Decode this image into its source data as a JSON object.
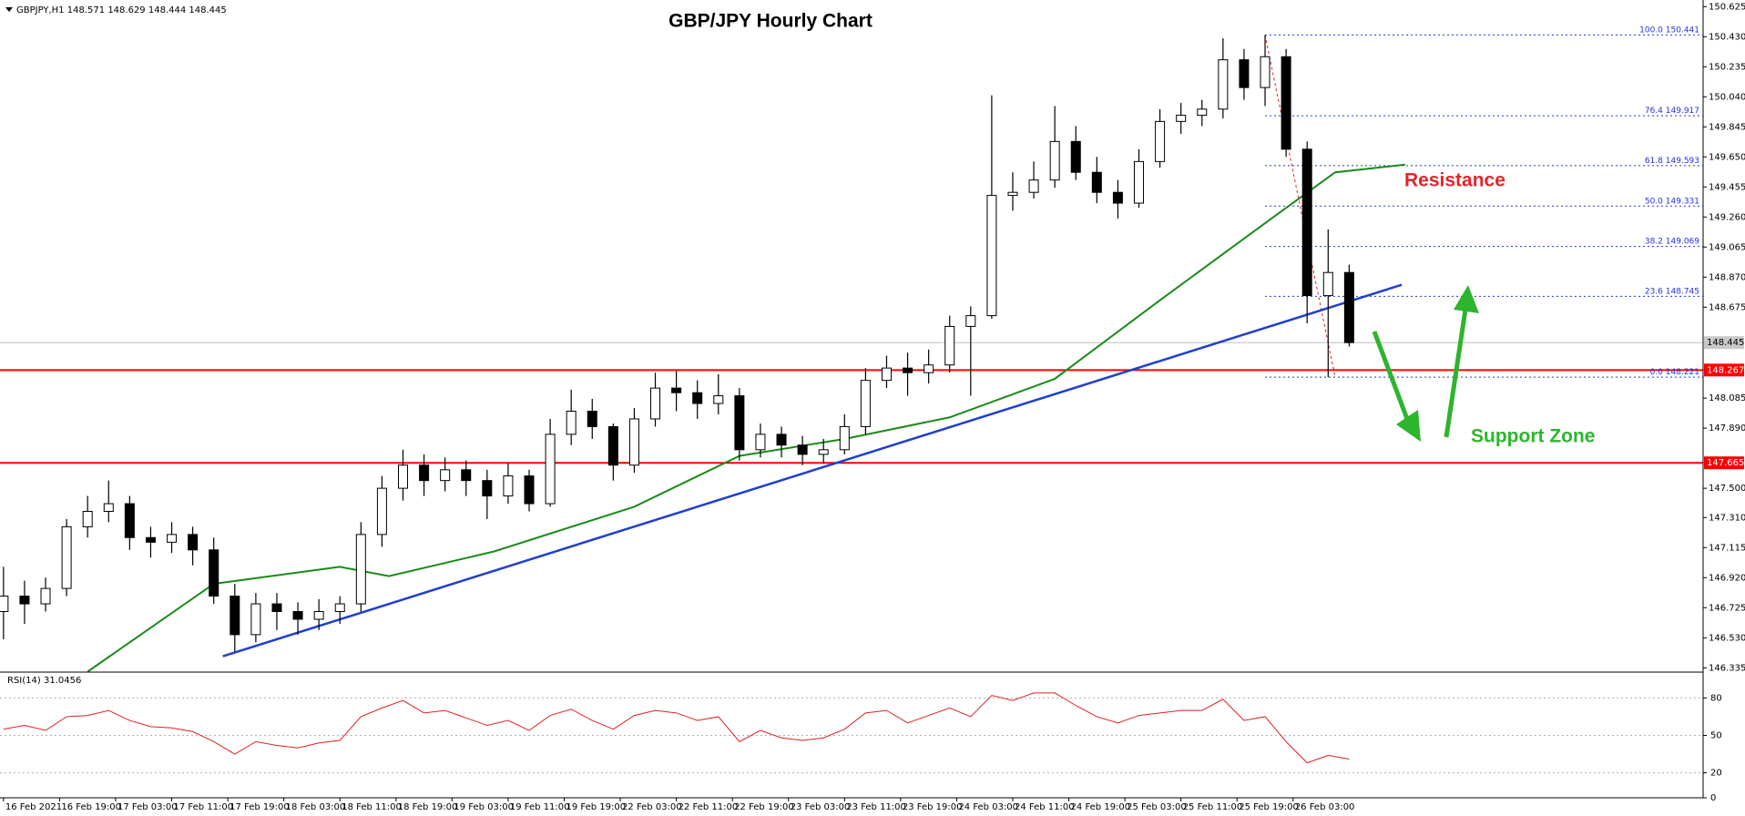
{
  "chart_data": {
    "type": "candlestick",
    "title": "GBP/JPY Hourly Chart",
    "symbol": "GBPJPY,H1",
    "quote": [
      148.571,
      148.629,
      148.444,
      148.445
    ],
    "x": [
      0,
      3,
      6,
      9,
      12,
      15,
      18,
      21,
      24,
      27,
      30,
      33,
      36,
      39,
      42,
      45,
      48,
      51,
      54,
      57,
      60,
      63,
      66,
      69,
      72,
      75,
      78,
      81,
      84,
      87,
      90,
      93,
      96,
      99,
      102,
      105,
      108,
      111,
      114,
      117,
      120,
      123,
      126,
      129,
      132,
      135,
      138,
      141,
      144,
      147,
      150,
      153,
      156,
      159,
      162,
      165,
      168,
      171,
      174,
      177,
      180,
      183,
      186,
      189,
      192
    ],
    "open": [
      146.7,
      146.8,
      146.75,
      146.85,
      147.25,
      147.35,
      147.4,
      147.18,
      147.15,
      147.2,
      147.1,
      146.8,
      146.55,
      146.75,
      146.7,
      146.65,
      146.7,
      146.75,
      147.2,
      147.5,
      147.65,
      147.55,
      147.62,
      147.55,
      147.45,
      147.58,
      147.4,
      147.85,
      148.0,
      147.9,
      147.65,
      147.95,
      148.15,
      148.12,
      148.05,
      148.1,
      147.75,
      147.85,
      147.78,
      147.72,
      147.75,
      147.9,
      148.2,
      148.28,
      148.25,
      148.3,
      148.55,
      148.62,
      149.4,
      149.42,
      149.5,
      149.75,
      149.55,
      149.42,
      149.35,
      149.62,
      149.88,
      149.92,
      149.96,
      150.28,
      150.1,
      150.3,
      149.7,
      148.75,
      148.9
    ],
    "high": [
      146.99,
      146.9,
      146.92,
      147.3,
      147.45,
      147.55,
      147.45,
      147.25,
      147.28,
      147.25,
      147.18,
      146.88,
      146.82,
      146.82,
      146.76,
      146.78,
      146.8,
      147.28,
      147.58,
      147.75,
      147.72,
      147.7,
      147.68,
      147.62,
      147.66,
      147.62,
      147.95,
      148.14,
      148.08,
      147.92,
      148.02,
      148.25,
      148.26,
      148.2,
      148.24,
      148.15,
      147.92,
      147.9,
      147.84,
      147.82,
      147.98,
      148.28,
      148.36,
      148.38,
      148.4,
      148.62,
      148.68,
      150.05,
      149.55,
      149.62,
      149.98,
      149.85,
      149.65,
      149.5,
      149.7,
      149.96,
      150.0,
      150.02,
      150.42,
      150.35,
      150.44,
      150.35,
      149.75,
      149.18,
      148.95
    ],
    "low": [
      146.52,
      146.62,
      146.7,
      146.8,
      147.18,
      147.28,
      147.1,
      147.05,
      147.08,
      147.0,
      146.75,
      146.44,
      146.5,
      146.58,
      146.55,
      146.58,
      146.62,
      146.7,
      147.12,
      147.42,
      147.45,
      147.48,
      147.45,
      147.3,
      147.4,
      147.35,
      147.38,
      147.78,
      147.82,
      147.55,
      147.6,
      147.9,
      148.0,
      147.95,
      147.98,
      147.68,
      147.7,
      147.7,
      147.65,
      147.66,
      147.72,
      147.85,
      148.15,
      148.1,
      148.18,
      148.25,
      148.1,
      148.6,
      149.3,
      149.38,
      149.45,
      149.5,
      149.35,
      149.25,
      149.32,
      149.58,
      149.8,
      149.85,
      149.9,
      150.02,
      149.98,
      149.65,
      148.57,
      148.22,
      148.42
    ],
    "close": [
      146.8,
      146.75,
      146.85,
      147.25,
      147.35,
      147.4,
      147.18,
      147.15,
      147.2,
      147.1,
      146.8,
      146.55,
      146.75,
      146.7,
      146.65,
      146.7,
      146.75,
      147.2,
      147.5,
      147.65,
      147.55,
      147.62,
      147.55,
      147.45,
      147.58,
      147.4,
      147.85,
      148.0,
      147.9,
      147.65,
      147.95,
      148.15,
      148.12,
      148.05,
      148.1,
      147.75,
      147.85,
      147.78,
      147.72,
      147.75,
      147.9,
      148.2,
      148.28,
      148.25,
      148.3,
      148.55,
      148.62,
      149.4,
      149.42,
      149.5,
      149.75,
      149.55,
      149.42,
      149.35,
      149.62,
      149.88,
      149.92,
      149.96,
      150.28,
      150.1,
      150.3,
      149.7,
      148.75,
      148.9,
      148.445
    ],
    "xlim": [
      -0.5,
      242.5
    ],
    "xticks": [
      {
        "value": 0,
        "label": "16 Feb 2021"
      },
      {
        "value": 8,
        "label": "16 Feb 19:00"
      },
      {
        "value": 16,
        "label": "17 Feb 03:00"
      },
      {
        "value": 24,
        "label": "17 Feb 11:00"
      },
      {
        "value": 32,
        "label": "17 Feb 19:00"
      },
      {
        "value": 40,
        "label": "18 Feb 03:00"
      },
      {
        "value": 48,
        "label": "18 Feb 11:00"
      },
      {
        "value": 56,
        "label": "18 Feb 19:00"
      },
      {
        "value": 64,
        "label": "19 Feb 03:00"
      },
      {
        "value": 72,
        "label": "19 Feb 11:00"
      },
      {
        "value": 80,
        "label": "19 Feb 19:00"
      },
      {
        "value": 88,
        "label": "22 Feb 03:00"
      },
      {
        "value": 96,
        "label": "22 Feb 11:00"
      },
      {
        "value": 104,
        "label": "22 Feb 19:00"
      },
      {
        "value": 112,
        "label": "23 Feb 03:00"
      },
      {
        "value": 120,
        "label": "23 Feb 11:00"
      },
      {
        "value": 128,
        "label": "23 Feb 19:00"
      },
      {
        "value": 136,
        "label": "24 Feb 03:00"
      },
      {
        "value": 144,
        "label": "24 Feb 11:00"
      },
      {
        "value": 152,
        "label": "24 Feb 19:00"
      },
      {
        "value": 160,
        "label": "25 Feb 03:00"
      },
      {
        "value": 168,
        "label": "25 Feb 11:00"
      },
      {
        "value": 176,
        "label": "25 Feb 19:00"
      },
      {
        "value": 184,
        "label": "26 Feb 03:00"
      }
    ],
    "ylim": [
      146.313,
      150.668
    ],
    "yticks": [
      150.625,
      {
        "value": 150.43,
        "label": "150.430"
      },
      150.235,
      {
        "value": 150.04,
        "label": "150.040"
      },
      149.845,
      {
        "value": 149.65,
        "label": "149.650"
      },
      149.455,
      {
        "value": 149.26,
        "label": "149.260"
      },
      149.065,
      {
        "value": 148.87,
        "label": "148.870"
      },
      148.675,
      148.085,
      {
        "value": 147.89,
        "label": "147.890"
      },
      {
        "value": 147.5,
        "label": "147.500"
      },
      {
        "value": 147.31,
        "label": "147.310"
      },
      147.115,
      {
        "value": 146.92,
        "label": "146.920"
      },
      146.725,
      {
        "value": 146.53,
        "label": "146.530"
      },
      146.335
    ],
    "up_color": "#ffffff",
    "down_color": "#000000",
    "last_price": 148.445,
    "hlines": [
      {
        "value": 148.267,
        "color": "#ff0000"
      },
      {
        "value": 147.665,
        "color": "#ff0000"
      }
    ],
    "moving_average": {
      "color": "#1a8a1a",
      "x": [
        12,
        30,
        48,
        55,
        70,
        90,
        105,
        120,
        135,
        150,
        165,
        180,
        190,
        200
      ],
      "values": [
        146.31,
        146.88,
        146.99,
        146.93,
        147.09,
        147.38,
        147.71,
        147.82,
        147.96,
        148.21,
        148.72,
        149.22,
        149.55,
        149.6
      ]
    },
    "trendline": {
      "color": "#1f3fcf",
      "x": [
        31.3,
        199.5
      ],
      "values": [
        146.41,
        148.82
      ]
    },
    "fib": {
      "color": "#2233dd",
      "x": [
        180,
        190
      ],
      "levels": [
        {
          "ratio": "100.0",
          "price": 150.441
        },
        {
          "ratio": "76.4",
          "price": 149.917
        },
        {
          "ratio": "61.8",
          "price": 149.593
        },
        {
          "ratio": "50.0",
          "price": 149.331
        },
        {
          "ratio": "38.2",
          "price": 149.069
        },
        {
          "ratio": "23.6",
          "price": 148.745
        },
        {
          "ratio": "0.0",
          "price": 148.221
        }
      ]
    },
    "annotations": {
      "resistance": "Resistance",
      "support": "Support Zone"
    },
    "rsi": {
      "name": "RSI(14)",
      "current": 31.0456,
      "color": "#e02020",
      "ylim": [
        0,
        100
      ],
      "yticks": [
        0,
        20,
        50,
        80
      ],
      "x": [
        0,
        3,
        6,
        9,
        12,
        15,
        18,
        21,
        24,
        27,
        30,
        33,
        36,
        39,
        42,
        45,
        48,
        51,
        54,
        57,
        60,
        63,
        66,
        69,
        72,
        75,
        78,
        81,
        84,
        87,
        90,
        93,
        96,
        99,
        102,
        105,
        108,
        111,
        114,
        117,
        120,
        123,
        126,
        129,
        132,
        135,
        138,
        141,
        144,
        147,
        150,
        153,
        156,
        159,
        162,
        165,
        168,
        171,
        174,
        177,
        180,
        183,
        186,
        189,
        192
      ],
      "values": [
        55,
        58,
        54,
        65,
        66,
        70,
        62,
        57,
        56,
        53,
        45,
        35,
        45,
        42,
        40,
        44,
        46,
        65,
        72,
        78,
        68,
        70,
        64,
        58,
        62,
        54,
        66,
        71,
        62,
        55,
        66,
        70,
        68,
        62,
        65,
        45,
        54,
        48,
        46,
        48,
        55,
        68,
        70,
        60,
        66,
        72,
        65,
        82,
        78,
        84,
        84,
        74,
        65,
        60,
        66,
        68,
        70,
        70,
        79,
        62,
        65,
        45,
        28,
        34,
        31
      ]
    }
  }
}
